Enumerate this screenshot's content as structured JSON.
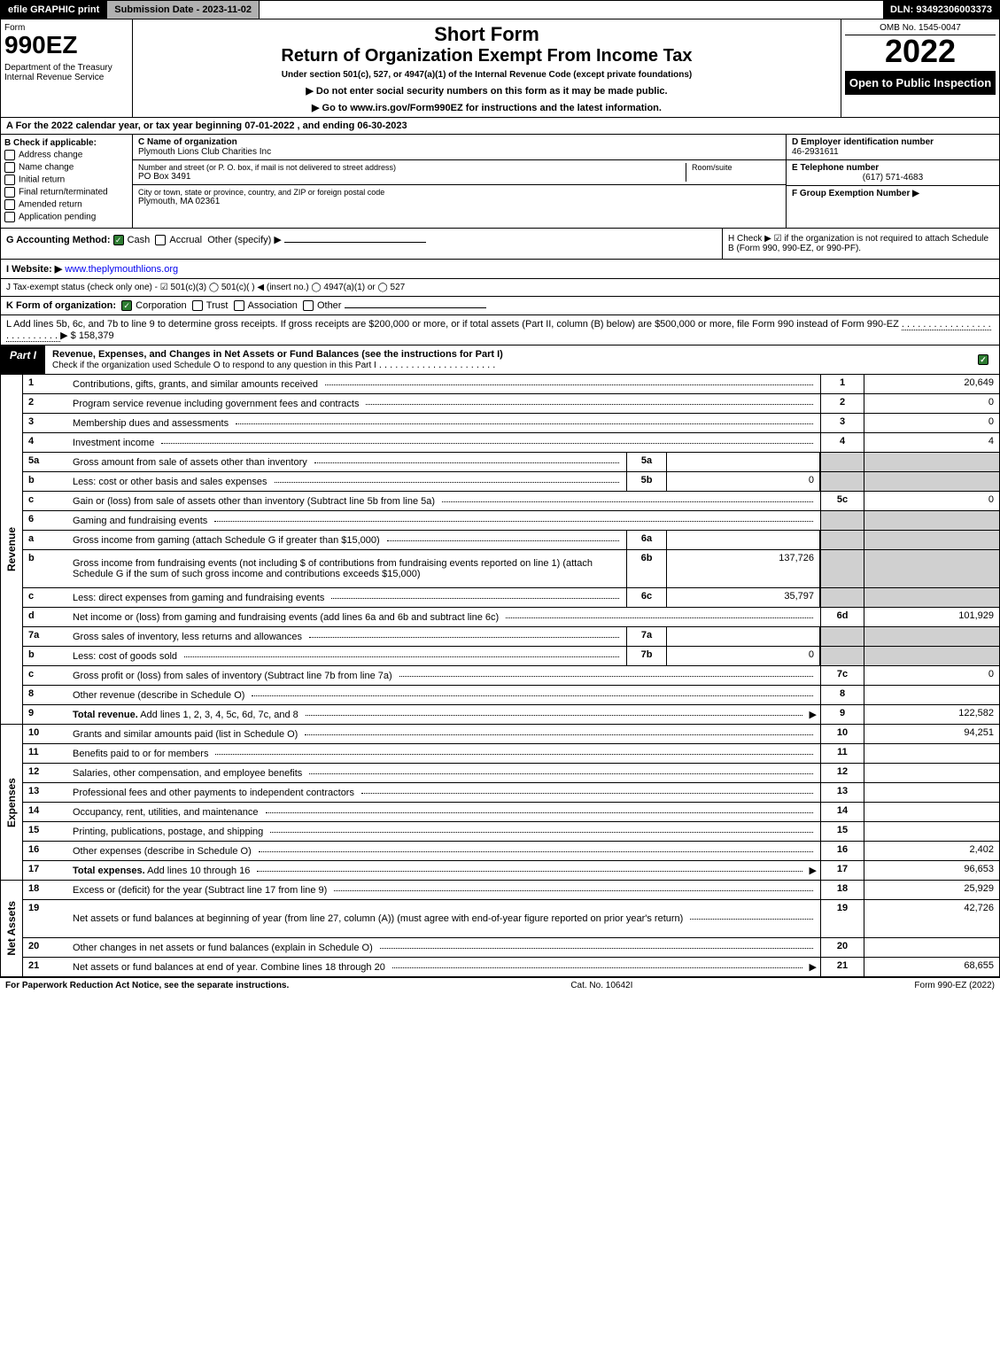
{
  "top": {
    "efile": "efile GRAPHIC print",
    "submission": "Submission Date - 2023-11-02",
    "dln": "DLN: 93492306003373"
  },
  "header": {
    "form_label": "Form",
    "form_number": "990EZ",
    "dept": "Department of the Treasury\nInternal Revenue Service",
    "short_form": "Short Form",
    "return_title": "Return of Organization Exempt From Income Tax",
    "under_section": "Under section 501(c), 527, or 4947(a)(1) of the Internal Revenue Code (except private foundations)",
    "do_not": "▶ Do not enter social security numbers on this form as it may be made public.",
    "goto": "▶ Go to www.irs.gov/Form990EZ for instructions and the latest information.",
    "omb": "OMB No. 1545-0047",
    "year": "2022",
    "inspection": "Open to Public Inspection"
  },
  "lineA": "A  For the 2022 calendar year, or tax year beginning 07-01-2022 , and ending 06-30-2023",
  "B": {
    "label": "B  Check if applicable:",
    "opts": [
      "Address change",
      "Name change",
      "Initial return",
      "Final return/terminated",
      "Amended return",
      "Application pending"
    ]
  },
  "C": {
    "name_label": "C Name of organization",
    "name": "Plymouth Lions Club Charities Inc",
    "street_label": "Number and street (or P. O. box, if mail is not delivered to street address)",
    "room_label": "Room/suite",
    "street": "PO Box 3491",
    "city_label": "City or town, state or province, country, and ZIP or foreign postal code",
    "city": "Plymouth, MA  02361"
  },
  "DE": {
    "d_label": "D Employer identification number",
    "ein": "46-2931611",
    "e_label": "E Telephone number",
    "phone": "(617) 571-4683",
    "f_label": "F Group Exemption Number  ▶"
  },
  "G": {
    "label": "G Accounting Method:",
    "opts": [
      "Cash",
      "Accrual"
    ],
    "other": "Other (specify) ▶"
  },
  "H": "H  Check ▶ ☑ if the organization is not required to attach Schedule B (Form 990, 990-EZ, or 990-PF).",
  "I": {
    "label": "I Website: ▶",
    "val": "www.theplymouthlions.org"
  },
  "J": "J Tax-exempt status (check only one) - ☑ 501(c)(3)  ◯ 501(c)(  ) ◀ (insert no.)  ◯ 4947(a)(1) or  ◯ 527",
  "K": {
    "label": "K Form of organization:",
    "opts": [
      "Corporation",
      "Trust",
      "Association",
      "Other"
    ]
  },
  "L": {
    "text": "L Add lines 5b, 6c, and 7b to line 9 to determine gross receipts. If gross receipts are $200,000 or more, or if total assets (Part II, column (B) below) are $500,000 or more, file Form 990 instead of Form 990-EZ",
    "amount": "▶ $ 158,379"
  },
  "part1": {
    "label": "Part I",
    "title": "Revenue, Expenses, and Changes in Net Assets or Fund Balances (see the instructions for Part I)",
    "check": "Check if the organization used Schedule O to respond to any question in this Part I"
  },
  "revenue": [
    {
      "n": "1",
      "d": "Contributions, gifts, grants, and similar amounts received",
      "num": "1",
      "val": "20,649"
    },
    {
      "n": "2",
      "d": "Program service revenue including government fees and contracts",
      "num": "2",
      "val": "0"
    },
    {
      "n": "3",
      "d": "Membership dues and assessments",
      "num": "3",
      "val": "0"
    },
    {
      "n": "4",
      "d": "Investment income",
      "num": "4",
      "val": "4"
    },
    {
      "n": "5a",
      "d": "Gross amount from sale of assets other than inventory",
      "in": "5a",
      "iv": "",
      "shade": true
    },
    {
      "n": "b",
      "d": "Less: cost or other basis and sales expenses",
      "in": "5b",
      "iv": "0",
      "shade": true
    },
    {
      "n": "c",
      "d": "Gain or (loss) from sale of assets other than inventory (Subtract line 5b from line 5a)",
      "num": "5c",
      "val": "0"
    },
    {
      "n": "6",
      "d": "Gaming and fundraising events",
      "shade": true
    },
    {
      "n": "a",
      "d": "Gross income from gaming (attach Schedule G if greater than $15,000)",
      "in": "6a",
      "iv": "",
      "shade": true
    },
    {
      "n": "b",
      "d": "Gross income from fundraising events (not including $                of contributions from fundraising events reported on line 1) (attach Schedule G if the sum of such gross income and contributions exceeds $15,000)",
      "in": "6b",
      "iv": "137,726",
      "shade": true,
      "tall": true
    },
    {
      "n": "c",
      "d": "Less: direct expenses from gaming and fundraising events",
      "in": "6c",
      "iv": "35,797",
      "shade": true
    },
    {
      "n": "d",
      "d": "Net income or (loss) from gaming and fundraising events (add lines 6a and 6b and subtract line 6c)",
      "num": "6d",
      "val": "101,929"
    },
    {
      "n": "7a",
      "d": "Gross sales of inventory, less returns and allowances",
      "in": "7a",
      "iv": "",
      "shade": true
    },
    {
      "n": "b",
      "d": "Less: cost of goods sold",
      "in": "7b",
      "iv": "0",
      "shade": true
    },
    {
      "n": "c",
      "d": "Gross profit or (loss) from sales of inventory (Subtract line 7b from line 7a)",
      "num": "7c",
      "val": "0"
    },
    {
      "n": "8",
      "d": "Other revenue (describe in Schedule O)",
      "num": "8",
      "val": ""
    },
    {
      "n": "9",
      "d": "Total revenue. Add lines 1, 2, 3, 4, 5c, 6d, 7c, and 8",
      "num": "9",
      "val": "122,582",
      "bold": true,
      "arrow": true
    }
  ],
  "expenses": [
    {
      "n": "10",
      "d": "Grants and similar amounts paid (list in Schedule O)",
      "num": "10",
      "val": "94,251"
    },
    {
      "n": "11",
      "d": "Benefits paid to or for members",
      "num": "11",
      "val": ""
    },
    {
      "n": "12",
      "d": "Salaries, other compensation, and employee benefits",
      "num": "12",
      "val": ""
    },
    {
      "n": "13",
      "d": "Professional fees and other payments to independent contractors",
      "num": "13",
      "val": ""
    },
    {
      "n": "14",
      "d": "Occupancy, rent, utilities, and maintenance",
      "num": "14",
      "val": ""
    },
    {
      "n": "15",
      "d": "Printing, publications, postage, and shipping",
      "num": "15",
      "val": ""
    },
    {
      "n": "16",
      "d": "Other expenses (describe in Schedule O)",
      "num": "16",
      "val": "2,402"
    },
    {
      "n": "17",
      "d": "Total expenses. Add lines 10 through 16",
      "num": "17",
      "val": "96,653",
      "bold": true,
      "arrow": true
    }
  ],
  "netassets": [
    {
      "n": "18",
      "d": "Excess or (deficit) for the year (Subtract line 17 from line 9)",
      "num": "18",
      "val": "25,929"
    },
    {
      "n": "19",
      "d": "Net assets or fund balances at beginning of year (from line 27, column (A)) (must agree with end-of-year figure reported on prior year's return)",
      "num": "19",
      "val": "42,726",
      "tall": true
    },
    {
      "n": "20",
      "d": "Other changes in net assets or fund balances (explain in Schedule O)",
      "num": "20",
      "val": ""
    },
    {
      "n": "21",
      "d": "Net assets or fund balances at end of year. Combine lines 18 through 20",
      "num": "21",
      "val": "68,655",
      "arrow": true
    }
  ],
  "sidelabels": {
    "rev": "Revenue",
    "exp": "Expenses",
    "net": "Net Assets"
  },
  "footer": {
    "left": "For Paperwork Reduction Act Notice, see the separate instructions.",
    "mid": "Cat. No. 10642I",
    "right": "Form 990-EZ (2022)"
  },
  "colors": {
    "black": "#000000",
    "white": "#ffffff",
    "grey_header": "#b0b0b0",
    "shade": "#d0d0d0",
    "check_green": "#2e7d32",
    "link": "#0000ee"
  }
}
